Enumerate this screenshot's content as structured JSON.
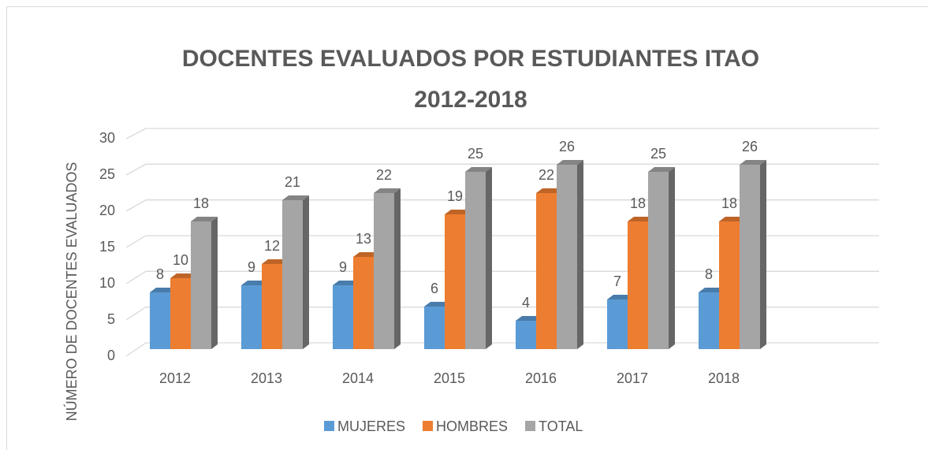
{
  "chart_data": {
    "type": "bar3d",
    "title": [
      "DOCENTES EVALUADOS POR ESTUDIANTES ITAO",
      "2012-2018"
    ],
    "y_label": "NÚMERO DE DOCENTES EVALUADOS",
    "categories": [
      "2012",
      "2013",
      "2014",
      "2015",
      "2016",
      "2017",
      "2018"
    ],
    "series": [
      {
        "name": "MUJERES",
        "color": "#5b9bd5",
        "values": [
          8,
          9,
          9,
          6,
          4,
          7,
          8
        ]
      },
      {
        "name": "HOMBRES",
        "color": "#ed7d31",
        "values": [
          10,
          12,
          13,
          19,
          22,
          18,
          18
        ]
      },
      {
        "name": "TOTAL",
        "color": "#a5a5a5",
        "values": [
          18,
          21,
          22,
          25,
          26,
          25,
          26
        ]
      }
    ],
    "ylim": [
      0,
      30
    ],
    "yticks": [
      0,
      5,
      10,
      15,
      20,
      25,
      30
    ],
    "grid": true,
    "legend": "bottom"
  }
}
